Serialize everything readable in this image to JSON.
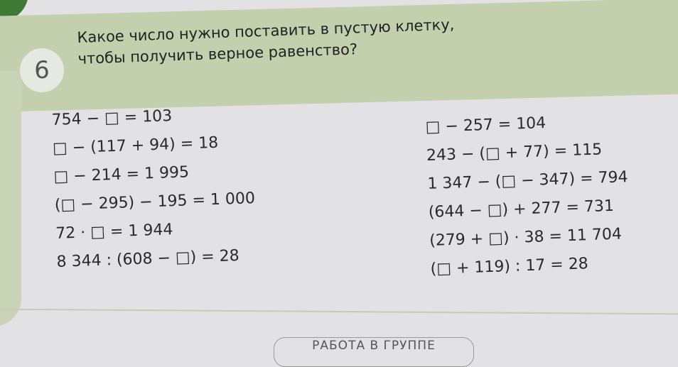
{
  "task": {
    "number": "6",
    "title_lines": [
      "Какое число нужно поставить в пустую клетку,",
      "чтобы получить верное равенство?"
    ]
  },
  "equations_left": [
    "754 − □ = 103",
    "□ − (117 + 94) = 18",
    "□ − 214 = 1 995",
    "(□ − 295) − 195 = 1 000",
    "72 · □ = 1 944",
    "8 344 : (608 − □) = 28"
  ],
  "equations_right": [
    "□ − 257 = 104",
    "243 − (□ + 77) = 115",
    "1 347 − (□ − 347) = 794",
    "(644 − □) + 277 = 731",
    "(279 + □) · 38 = 11 704",
    "(□ + 119) : 17 = 28"
  ],
  "footer": {
    "section_label": "РАБОТА В ГРУППЕ"
  },
  "colors": {
    "band": "#c3d0ad",
    "corner": "#3f7a35",
    "page": "#e2e2e4"
  }
}
